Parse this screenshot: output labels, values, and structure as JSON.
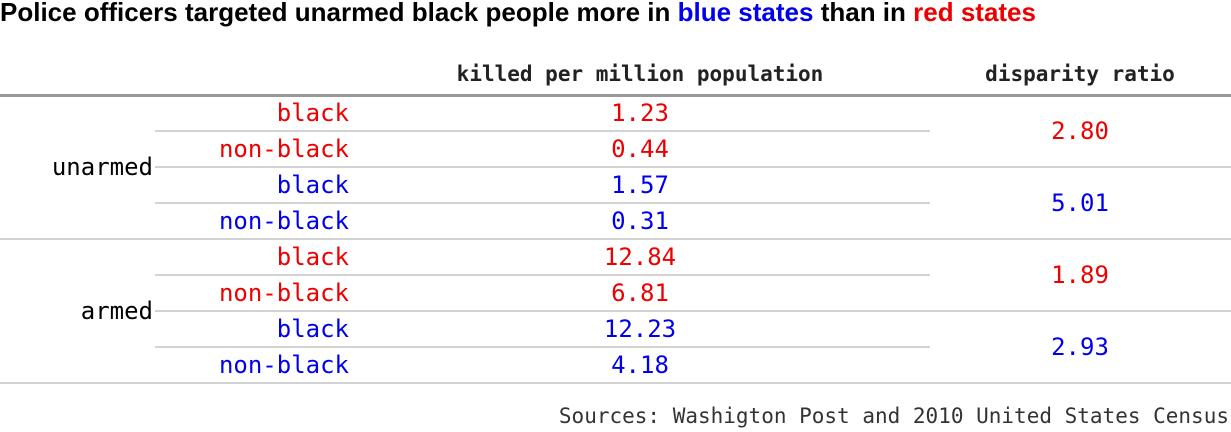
{
  "title": {
    "prefix": "Police officers targeted unarmed black people more in ",
    "blue": "blue states",
    "middle": " than in ",
    "red": "red states"
  },
  "colors": {
    "red": "#ee0000",
    "blue": "#0000ee",
    "text": "#000000",
    "rule": "#999999",
    "thin_rule": "#d3d3d3"
  },
  "chart_data": {
    "type": "table",
    "columns": [
      "killed per million population",
      "disparity ratio"
    ],
    "groups": [
      {
        "name": "unarmed",
        "subgroups": [
          {
            "color": "red",
            "rows": [
              {
                "label": "black",
                "value": "1.23"
              },
              {
                "label": "non-black",
                "value": "0.44"
              }
            ],
            "ratio": "2.80"
          },
          {
            "color": "blue",
            "rows": [
              {
                "label": "black",
                "value": "1.57"
              },
              {
                "label": "non-black",
                "value": "0.31"
              }
            ],
            "ratio": "5.01"
          }
        ]
      },
      {
        "name": "armed",
        "subgroups": [
          {
            "color": "red",
            "rows": [
              {
                "label": "black",
                "value": "12.84"
              },
              {
                "label": "non-black",
                "value": "6.81"
              }
            ],
            "ratio": "1.89"
          },
          {
            "color": "blue",
            "rows": [
              {
                "label": "black",
                "value": "12.23"
              },
              {
                "label": "non-black",
                "value": "4.18"
              }
            ],
            "ratio": "2.93"
          }
        ]
      }
    ]
  },
  "source": "Sources: Washigton Post and 2010 United States Census"
}
